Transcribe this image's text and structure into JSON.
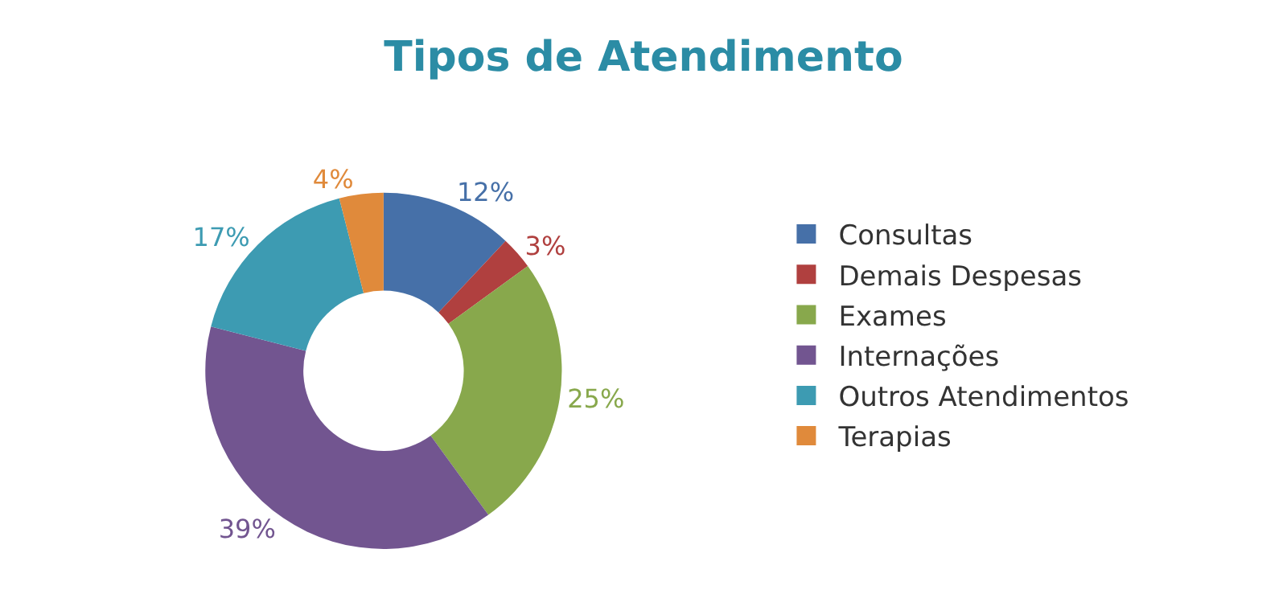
{
  "chart_data": {
    "type": "donut",
    "title": "Tipos de Atendimento",
    "categories": [
      "Consultas",
      "Demais Despesas",
      "Exames",
      "Internações",
      "Outros Atendimentos",
      "Terapias"
    ],
    "values": [
      12,
      3,
      25,
      39,
      17,
      4
    ],
    "value_labels": [
      "12%",
      "3%",
      "25%",
      "39%",
      "17%",
      "4%"
    ],
    "colors": [
      "#4670a8",
      "#b0403f",
      "#88a84c",
      "#725590",
      "#3d9bb2",
      "#e08a3b"
    ],
    "legend": "right"
  }
}
